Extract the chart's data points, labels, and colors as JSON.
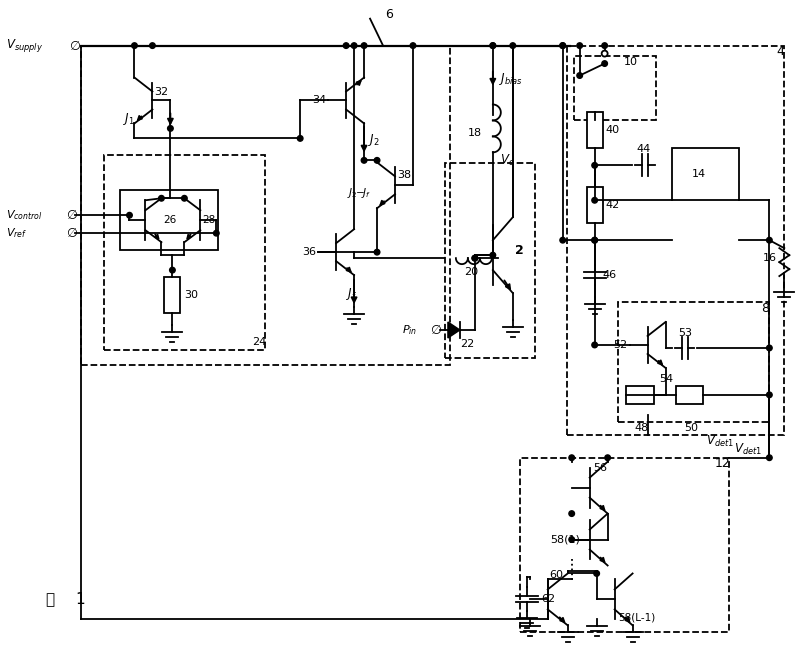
{
  "bg": "#ffffff",
  "lc": "#000000",
  "lw": 1.3,
  "fig_w": 8.0,
  "fig_h": 6.49,
  "dpi": 100
}
